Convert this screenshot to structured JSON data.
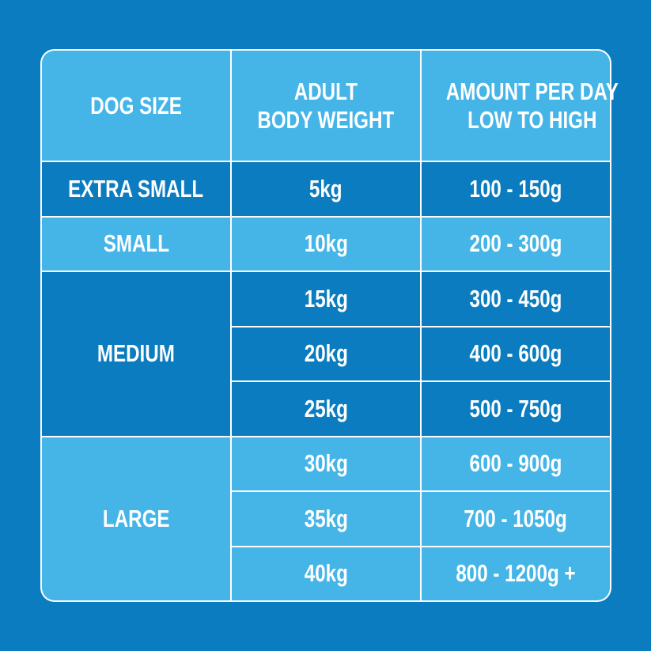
{
  "table": {
    "header": [
      [
        "DOG SIZE"
      ],
      [
        "ADULT",
        "BODY WEIGHT"
      ],
      [
        "AMOUNT PER DAY",
        "LOW TO HIGH"
      ]
    ],
    "groups": [
      {
        "size": "EXTRA SMALL",
        "rows": [
          [
            "5kg",
            "100 - 150g"
          ]
        ]
      },
      {
        "size": "SMALL",
        "rows": [
          [
            "10kg",
            "200 - 300g"
          ]
        ]
      },
      {
        "size": "MEDIUM",
        "rows": [
          [
            "15kg",
            "300 - 450g"
          ],
          [
            "20kg",
            "400 - 600g"
          ],
          [
            "25kg",
            "500 - 750g"
          ]
        ]
      },
      {
        "size": "LARGE",
        "rows": [
          [
            "30kg",
            "600 - 900g"
          ],
          [
            "35kg",
            "700 - 1050g"
          ],
          [
            "40kg",
            "800 - 1200g +"
          ]
        ]
      }
    ]
  }
}
